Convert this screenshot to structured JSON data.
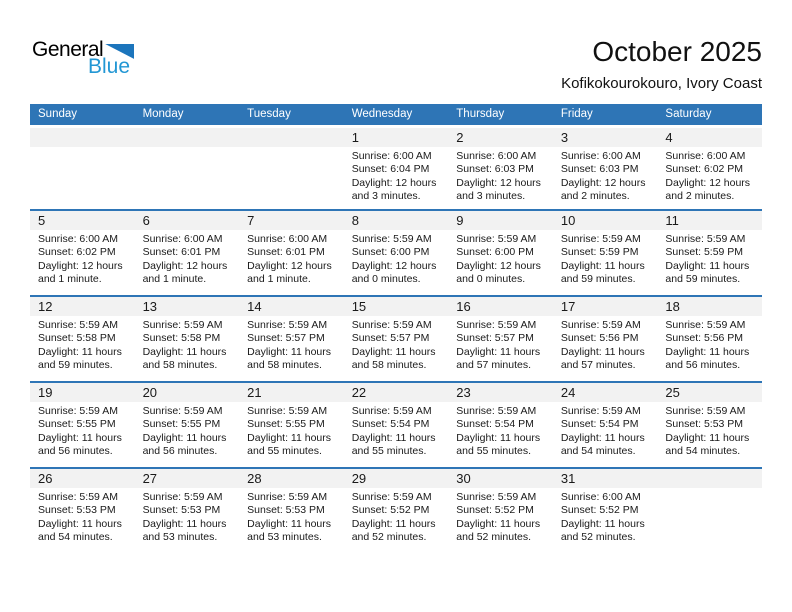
{
  "logo": {
    "general": "General",
    "blue": "Blue"
  },
  "header": {
    "title": "October 2025",
    "subtitle": "Kofikokourokouro, Ivory Coast"
  },
  "colors": {
    "header_blue": "#2E75B6",
    "band_gray": "#F2F2F2",
    "logo_blue": "#2397D4",
    "logo_triangle": "#1C75BC"
  },
  "weekdays": [
    "Sunday",
    "Monday",
    "Tuesday",
    "Wednesday",
    "Thursday",
    "Friday",
    "Saturday"
  ],
  "labels": {
    "sunrise": "Sunrise:",
    "sunset": "Sunset:",
    "daylight": "Daylight:"
  },
  "weeks": [
    [
      null,
      null,
      null,
      {
        "day": "1",
        "sunrise": "6:00 AM",
        "sunset": "6:04 PM",
        "daylight": "12 hours and 3 minutes."
      },
      {
        "day": "2",
        "sunrise": "6:00 AM",
        "sunset": "6:03 PM",
        "daylight": "12 hours and 3 minutes."
      },
      {
        "day": "3",
        "sunrise": "6:00 AM",
        "sunset": "6:03 PM",
        "daylight": "12 hours and 2 minutes."
      },
      {
        "day": "4",
        "sunrise": "6:00 AM",
        "sunset": "6:02 PM",
        "daylight": "12 hours and 2 minutes."
      }
    ],
    [
      {
        "day": "5",
        "sunrise": "6:00 AM",
        "sunset": "6:02 PM",
        "daylight": "12 hours and 1 minute."
      },
      {
        "day": "6",
        "sunrise": "6:00 AM",
        "sunset": "6:01 PM",
        "daylight": "12 hours and 1 minute."
      },
      {
        "day": "7",
        "sunrise": "6:00 AM",
        "sunset": "6:01 PM",
        "daylight": "12 hours and 1 minute."
      },
      {
        "day": "8",
        "sunrise": "5:59 AM",
        "sunset": "6:00 PM",
        "daylight": "12 hours and 0 minutes."
      },
      {
        "day": "9",
        "sunrise": "5:59 AM",
        "sunset": "6:00 PM",
        "daylight": "12 hours and 0 minutes."
      },
      {
        "day": "10",
        "sunrise": "5:59 AM",
        "sunset": "5:59 PM",
        "daylight": "11 hours and 59 minutes."
      },
      {
        "day": "11",
        "sunrise": "5:59 AM",
        "sunset": "5:59 PM",
        "daylight": "11 hours and 59 minutes."
      }
    ],
    [
      {
        "day": "12",
        "sunrise": "5:59 AM",
        "sunset": "5:58 PM",
        "daylight": "11 hours and 59 minutes."
      },
      {
        "day": "13",
        "sunrise": "5:59 AM",
        "sunset": "5:58 PM",
        "daylight": "11 hours and 58 minutes."
      },
      {
        "day": "14",
        "sunrise": "5:59 AM",
        "sunset": "5:57 PM",
        "daylight": "11 hours and 58 minutes."
      },
      {
        "day": "15",
        "sunrise": "5:59 AM",
        "sunset": "5:57 PM",
        "daylight": "11 hours and 58 minutes."
      },
      {
        "day": "16",
        "sunrise": "5:59 AM",
        "sunset": "5:57 PM",
        "daylight": "11 hours and 57 minutes."
      },
      {
        "day": "17",
        "sunrise": "5:59 AM",
        "sunset": "5:56 PM",
        "daylight": "11 hours and 57 minutes."
      },
      {
        "day": "18",
        "sunrise": "5:59 AM",
        "sunset": "5:56 PM",
        "daylight": "11 hours and 56 minutes."
      }
    ],
    [
      {
        "day": "19",
        "sunrise": "5:59 AM",
        "sunset": "5:55 PM",
        "daylight": "11 hours and 56 minutes."
      },
      {
        "day": "20",
        "sunrise": "5:59 AM",
        "sunset": "5:55 PM",
        "daylight": "11 hours and 56 minutes."
      },
      {
        "day": "21",
        "sunrise": "5:59 AM",
        "sunset": "5:55 PM",
        "daylight": "11 hours and 55 minutes."
      },
      {
        "day": "22",
        "sunrise": "5:59 AM",
        "sunset": "5:54 PM",
        "daylight": "11 hours and 55 minutes."
      },
      {
        "day": "23",
        "sunrise": "5:59 AM",
        "sunset": "5:54 PM",
        "daylight": "11 hours and 55 minutes."
      },
      {
        "day": "24",
        "sunrise": "5:59 AM",
        "sunset": "5:54 PM",
        "daylight": "11 hours and 54 minutes."
      },
      {
        "day": "25",
        "sunrise": "5:59 AM",
        "sunset": "5:53 PM",
        "daylight": "11 hours and 54 minutes."
      }
    ],
    [
      {
        "day": "26",
        "sunrise": "5:59 AM",
        "sunset": "5:53 PM",
        "daylight": "11 hours and 54 minutes."
      },
      {
        "day": "27",
        "sunrise": "5:59 AM",
        "sunset": "5:53 PM",
        "daylight": "11 hours and 53 minutes."
      },
      {
        "day": "28",
        "sunrise": "5:59 AM",
        "sunset": "5:53 PM",
        "daylight": "11 hours and 53 minutes."
      },
      {
        "day": "29",
        "sunrise": "5:59 AM",
        "sunset": "5:52 PM",
        "daylight": "11 hours and 52 minutes."
      },
      {
        "day": "30",
        "sunrise": "5:59 AM",
        "sunset": "5:52 PM",
        "daylight": "11 hours and 52 minutes."
      },
      {
        "day": "31",
        "sunrise": "6:00 AM",
        "sunset": "5:52 PM",
        "daylight": "11 hours and 52 minutes."
      },
      null
    ]
  ]
}
